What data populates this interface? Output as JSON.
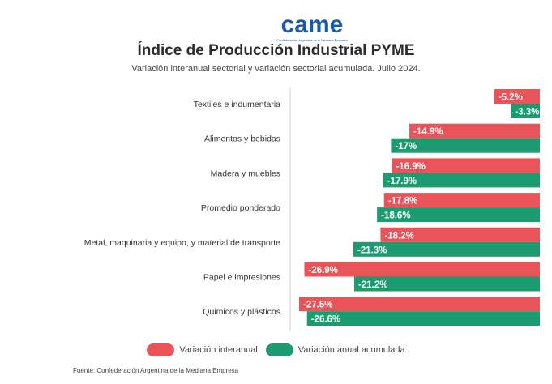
{
  "header": {
    "logo_text": "came",
    "logo_tagline": "Confederación Argentina de la Mediana Empresa"
  },
  "legend": {
    "interanual_label": "Variación interanual",
    "acumulada_label": "Variación anual acumulada"
  },
  "footer": {
    "source": "Fuente: Confederación Argentina de la Mediana Empresa"
  },
  "colors": {
    "interanual": "#e8545a",
    "acumulada": "#1d9b70",
    "logo_blue": "#1a5aa8"
  },
  "chart_data": {
    "type": "bar",
    "orientation": "horizontal",
    "title": "Índice de Producción Industrial PYME",
    "subtitle": "Variación interanual sectorial y variación sectorial acumulada. Julio 2024.",
    "categories": [
      "Textiles e indumentaria",
      "Alimentos y bebidas",
      "Madera y muebles",
      "Promedio ponderado",
      "Metal, maquinaria y equipo, y material de transporte",
      "Papel e impresiones",
      "Quimicos y plásticos"
    ],
    "series": [
      {
        "name": "Variación interanual",
        "values": [
          -5.2,
          -14.9,
          -16.9,
          -17.8,
          -18.2,
          -26.9,
          -27.5
        ],
        "labels": [
          "-5.2%",
          "-14.9%",
          "-16.9%",
          "-17.8%",
          "-18.2%",
          "-26.9%",
          "-27.5%"
        ]
      },
      {
        "name": "Variación anual acumulada",
        "values": [
          -3.3,
          -17,
          -17.9,
          -18.6,
          -21.3,
          -21.2,
          -26.6
        ],
        "labels": [
          "-3.3%",
          "-17%",
          "-17.9%",
          "-18.6%",
          "-21.3%",
          "-21.2%",
          "-26.6%"
        ]
      }
    ],
    "xlim": [
      -30,
      0
    ],
    "legend_position": "bottom"
  }
}
